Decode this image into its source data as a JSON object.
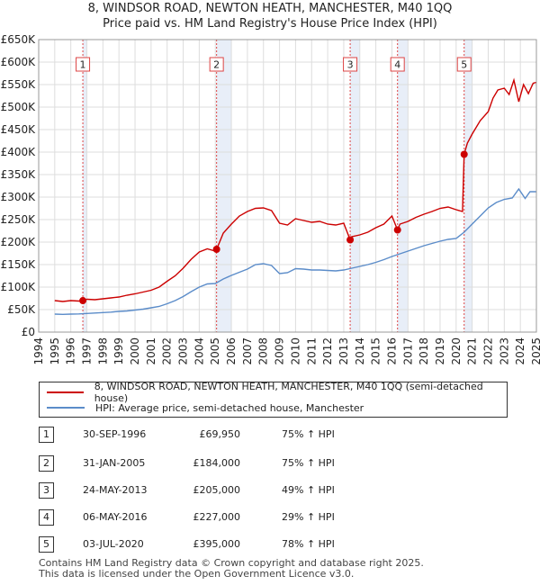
{
  "title_line1": "8, WINDSOR ROAD, NEWTON HEATH, MANCHESTER, M40 1QQ",
  "title_line2": "Price paid vs. HM Land Registry's House Price Index (HPI)",
  "legend": {
    "property_label": "8, WINDSOR ROAD, NEWTON HEATH, MANCHESTER, M40 1QQ (semi-detached house)",
    "hpi_label": "HPI: Average price, semi-detached house, Manchester"
  },
  "colors": {
    "property": "#cc0000",
    "hpi": "#5b8cc9",
    "shade": "#e8eef8",
    "vline": "#dd4444",
    "grid": "#dddddd"
  },
  "transactions": [
    {
      "num": "1",
      "date": "30-SEP-1996",
      "price": "£69,950",
      "hpi": "75% ↑ HPI"
    },
    {
      "num": "2",
      "date": "31-JAN-2005",
      "price": "£184,000",
      "hpi": "75% ↑ HPI"
    },
    {
      "num": "3",
      "date": "24-MAY-2013",
      "price": "£205,000",
      "hpi": "49% ↑ HPI"
    },
    {
      "num": "4",
      "date": "06-MAY-2016",
      "price": "£227,000",
      "hpi": "29% ↑ HPI"
    },
    {
      "num": "5",
      "date": "03-JUL-2020",
      "price": "£395,000",
      "hpi": "78% ↑ HPI"
    }
  ],
  "footer_line1": "Contains HM Land Registry data © Crown copyright and database right 2025.",
  "footer_line2": "This data is licensed under the Open Government Licence v3.0.",
  "chart_data": {
    "type": "line",
    "xlim": [
      1994,
      2025
    ],
    "ylim": [
      0,
      650000
    ],
    "x_ticks": [
      "1994",
      "1995",
      "1996",
      "1997",
      "1998",
      "1999",
      "2000",
      "2001",
      "2002",
      "2003",
      "2004",
      "2005",
      "2006",
      "2007",
      "2008",
      "2009",
      "2010",
      "2011",
      "2012",
      "2013",
      "2014",
      "2015",
      "2016",
      "2017",
      "2018",
      "2019",
      "2020",
      "2021",
      "2022",
      "2023",
      "2024",
      "2025"
    ],
    "y_ticks": [
      "£0",
      "£50K",
      "£100K",
      "£150K",
      "£200K",
      "£250K",
      "£300K",
      "£350K",
      "£400K",
      "£450K",
      "£500K",
      "£550K",
      "£600K",
      "£650K"
    ],
    "y_tick_values": [
      0,
      50000,
      100000,
      150000,
      200000,
      250000,
      300000,
      350000,
      400000,
      450000,
      500000,
      550000,
      600000,
      650000
    ],
    "grid": true,
    "sales": [
      {
        "label": "1",
        "x": 1996.75,
        "y": 69950
      },
      {
        "label": "2",
        "x": 2005.08,
        "y": 184000
      },
      {
        "label": "3",
        "x": 2013.4,
        "y": 205000
      },
      {
        "label": "4",
        "x": 2016.35,
        "y": 227000
      },
      {
        "label": "5",
        "x": 2020.5,
        "y": 395000
      }
    ],
    "series": [
      {
        "name": "8, WINDSOR ROAD, NEWTON HEATH, MANCHESTER, M40 1QQ (semi-detached house)",
        "x": [
          1995.0,
          1995.5,
          1996.0,
          1996.5,
          1996.75,
          1997.0,
          1997.5,
          1998.0,
          1998.5,
          1999.0,
          1999.5,
          2000.0,
          2000.5,
          2001.0,
          2001.5,
          2002.0,
          2002.5,
          2003.0,
          2003.5,
          2004.0,
          2004.5,
          2005.0,
          2005.08,
          2005.5,
          2006.0,
          2006.5,
          2007.0,
          2007.5,
          2008.0,
          2008.5,
          2009.0,
          2009.5,
          2010.0,
          2010.5,
          2011.0,
          2011.5,
          2012.0,
          2012.5,
          2013.0,
          2013.4,
          2013.5,
          2014.0,
          2014.5,
          2015.0,
          2015.5,
          2016.0,
          2016.35,
          2016.5,
          2017.0,
          2017.5,
          2018.0,
          2018.5,
          2019.0,
          2019.5,
          2020.0,
          2020.4,
          2020.5,
          2020.7,
          2021.0,
          2021.5,
          2022.0,
          2022.3,
          2022.6,
          2023.0,
          2023.3,
          2023.6,
          2023.9,
          2024.2,
          2024.5,
          2024.8,
          2025.0
        ],
        "y": [
          70000,
          68000,
          70000,
          69000,
          69950,
          73000,
          72000,
          74000,
          76000,
          78000,
          82000,
          85000,
          89000,
          93000,
          100000,
          113000,
          125000,
          142000,
          162000,
          178000,
          185000,
          180000,
          184000,
          220000,
          240000,
          258000,
          268000,
          275000,
          276000,
          270000,
          242000,
          238000,
          252000,
          248000,
          244000,
          246000,
          240000,
          238000,
          242000,
          205000,
          212000,
          216000,
          222000,
          232000,
          240000,
          258000,
          227000,
          240000,
          246000,
          255000,
          262000,
          268000,
          275000,
          278000,
          272000,
          268000,
          395000,
          420000,
          440000,
          470000,
          490000,
          520000,
          538000,
          542000,
          528000,
          560000,
          512000,
          550000,
          530000,
          553000,
          555000
        ]
      },
      {
        "name": "HPI: Average price, semi-detached house, Manchester",
        "x": [
          1995.0,
          1995.5,
          1996.0,
          1996.5,
          1997.0,
          1997.5,
          1998.0,
          1998.5,
          1999.0,
          1999.5,
          2000.0,
          2000.5,
          2001.0,
          2001.5,
          2002.0,
          2002.5,
          2003.0,
          2003.5,
          2004.0,
          2004.5,
          2005.0,
          2005.5,
          2006.0,
          2006.5,
          2007.0,
          2007.5,
          2008.0,
          2008.5,
          2009.0,
          2009.5,
          2010.0,
          2010.5,
          2011.0,
          2011.5,
          2012.0,
          2012.5,
          2013.0,
          2013.5,
          2014.0,
          2014.5,
          2015.0,
          2015.5,
          2016.0,
          2016.5,
          2017.0,
          2017.5,
          2018.0,
          2018.5,
          2019.0,
          2019.5,
          2020.0,
          2020.5,
          2021.0,
          2021.5,
          2022.0,
          2022.5,
          2023.0,
          2023.5,
          2023.9,
          2024.3,
          2024.6,
          2025.0
        ],
        "y": [
          40000,
          39500,
          40000,
          40500,
          41500,
          42500,
          43500,
          44500,
          46000,
          47000,
          49000,
          51000,
          54000,
          57000,
          63000,
          70000,
          79000,
          90000,
          100000,
          107000,
          108000,
          118000,
          126000,
          133000,
          140000,
          150000,
          152000,
          148000,
          130000,
          132000,
          141000,
          140000,
          138000,
          138000,
          137000,
          136000,
          138000,
          142000,
          146000,
          150000,
          155000,
          161000,
          168000,
          174000,
          180000,
          186000,
          192000,
          197000,
          202000,
          206000,
          208000,
          222000,
          240000,
          258000,
          276000,
          288000,
          295000,
          298000,
          318000,
          297000,
          312000,
          312000
        ]
      }
    ]
  }
}
